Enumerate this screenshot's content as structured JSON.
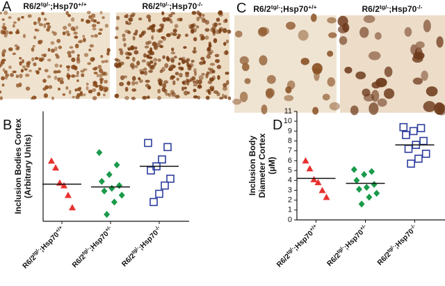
{
  "panels": {
    "A": {
      "letter": "A",
      "labels": [
        {
          "base": "R6/2",
          "sup": "tg/-",
          "mid": ";Hsp70",
          "sup2": "+/+"
        },
        {
          "base": "R6/2",
          "sup": "tg/-",
          "mid": ";Hsp70",
          "sup2": "-/-"
        }
      ]
    },
    "C": {
      "letter": "C",
      "labels": [
        {
          "base": "R6/2",
          "sup": "tg/-",
          "mid": ";Hsp70",
          "sup2": "+/+"
        },
        {
          "base": "R6/2",
          "sup": "tg/-",
          "mid": ";Hsp70",
          "sup2": "-/-"
        }
      ]
    }
  },
  "chart_data": [
    {
      "type": "scatter",
      "letter": "B",
      "ylabel": [
        "Inclusion Bodies Cortex",
        "(Arbitrary Units)"
      ],
      "categories": [
        {
          "base": "R6/2",
          "sup": "tg/-",
          "mid": ";Hsp70",
          "sup2": "+/+"
        },
        {
          "base": "R6/2",
          "sup": "tg/-",
          "mid": ";Hsp70",
          "sup2": "+/-"
        },
        {
          "base": "R6/2",
          "sup": "tg/-",
          "mid": ";Hsp70",
          "sup2": "-/-"
        }
      ],
      "series": [
        {
          "color": "#e8312f",
          "marker": "triangle",
          "values": [
            44,
            39,
            28,
            26,
            19,
            10
          ]
        },
        {
          "color": "#1a9a4a",
          "marker": "diamond",
          "values": [
            50,
            41,
            34,
            29,
            26,
            24,
            22,
            19,
            14,
            5
          ]
        },
        {
          "color": "#2c3c9c",
          "marker": "open-square",
          "values": [
            57,
            54,
            45,
            40,
            37,
            31,
            26,
            20,
            14
          ]
        }
      ],
      "means": [
        27,
        25,
        40
      ],
      "ylim": [
        0,
        80
      ]
    },
    {
      "type": "scatter",
      "letter": "D",
      "ylabel": [
        "Inclusion Body",
        "Diameter Cortex",
        "(μM)"
      ],
      "categories": [
        {
          "base": "R6/2",
          "sup": "tg/-",
          "mid": ";Hsp70",
          "sup2": "+/+"
        },
        {
          "base": "R6/2",
          "sup": "tg/-",
          "mid": ";Hsp70",
          "sup2": "+/-"
        },
        {
          "base": "R6/2",
          "sup": "tg/-",
          "mid": ";Hsp70",
          "sup2": "-/-"
        }
      ],
      "series": [
        {
          "color": "#e8312f",
          "marker": "triangle",
          "values": [
            6,
            5.2,
            4.1,
            3.8,
            3.0,
            2.3
          ]
        },
        {
          "color": "#1a9a4a",
          "marker": "diamond",
          "values": [
            5.1,
            4.9,
            4.6,
            4.0,
            3.6,
            3.3,
            3.1,
            2.7,
            2.3,
            1.6
          ]
        },
        {
          "color": "#2c3c9c",
          "marker": "open-square",
          "values": [
            9.4,
            9.3,
            9.0,
            8.6,
            8.0,
            7.6,
            7.2,
            6.7,
            6.2,
            5.7
          ]
        }
      ],
      "means": [
        4.2,
        3.7,
        7.6
      ],
      "ylim": [
        0,
        11
      ],
      "yticks": [
        0,
        1,
        2,
        3,
        4,
        5,
        6,
        7,
        8,
        9,
        10,
        11
      ]
    }
  ]
}
